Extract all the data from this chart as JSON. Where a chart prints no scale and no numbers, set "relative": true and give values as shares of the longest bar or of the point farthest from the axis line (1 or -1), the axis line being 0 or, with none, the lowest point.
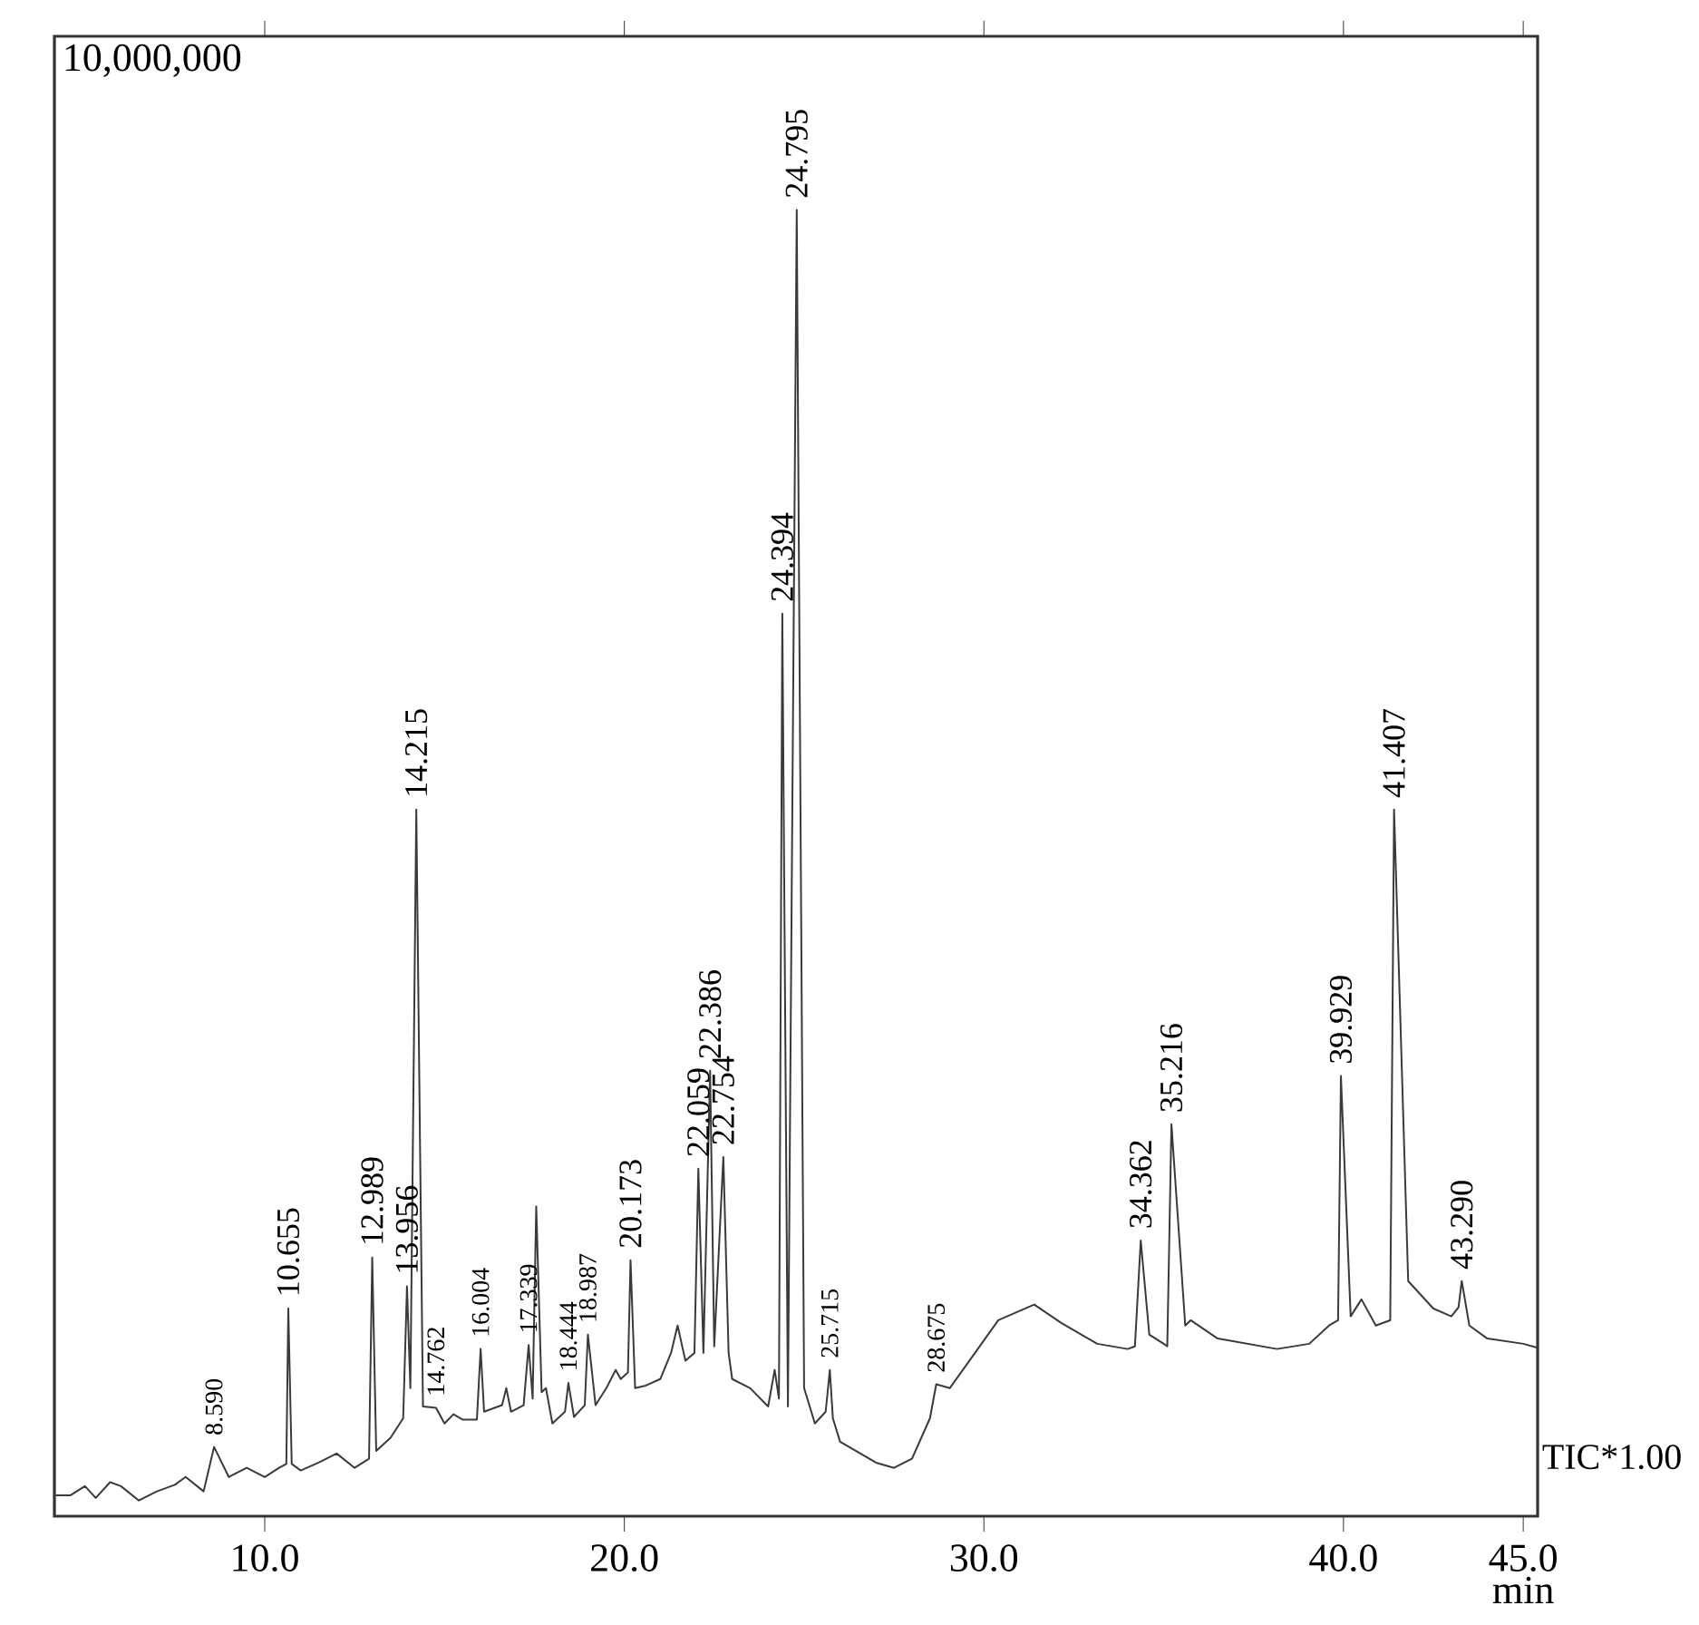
{
  "chart_data": {
    "type": "line",
    "relative": true,
    "xlabel": "min",
    "color": "#3a3a3a",
    "xlim": [
      4.15,
      45.4
    ],
    "xticks": [
      {
        "value": 10,
        "label": "10.0"
      },
      {
        "value": 20,
        "label": "20.0"
      },
      {
        "value": 30,
        "label": "30.0"
      },
      {
        "value": 40,
        "label": "40.0"
      },
      {
        "value": 45,
        "label": "45.0"
      }
    ],
    "x": [
      4.2,
      4.6,
      5.0,
      5.3,
      5.7,
      6.0,
      6.5,
      7.0,
      7.5,
      7.8,
      8.3,
      8.59,
      9.0,
      9.5,
      10.0,
      10.4,
      10.6,
      10.655,
      10.75,
      11.0,
      11.5,
      12.0,
      12.5,
      12.9,
      12.989,
      13.1,
      13.5,
      13.85,
      13.956,
      14.05,
      14.215,
      14.4,
      14.762,
      15.0,
      15.249,
      15.5,
      15.9,
      16.004,
      16.1,
      16.6,
      16.718,
      16.85,
      17.2,
      17.339,
      17.45,
      17.55,
      17.7,
      17.821,
      18.0,
      18.35,
      18.444,
      18.6,
      18.9,
      18.987,
      19.2,
      19.5,
      19.76,
      19.9,
      20.1,
      20.173,
      20.3,
      20.6,
      21.0,
      21.3,
      21.481,
      21.7,
      21.95,
      22.059,
      22.2,
      22.386,
      22.5,
      22.754,
      22.9,
      23.0,
      23.5,
      24.0,
      24.181,
      24.3,
      24.394,
      24.55,
      24.795,
      25.0,
      25.3,
      25.6,
      25.715,
      25.8,
      26.0,
      27.0,
      27.5,
      28.0,
      28.5,
      28.675,
      29.05,
      29.65,
      30.4,
      31.4,
      32.15,
      33.15,
      34.0,
      34.2,
      34.362,
      34.6,
      35.0,
      35.1,
      35.216,
      35.6,
      35.75,
      36.5,
      38.15,
      39.05,
      39.6,
      39.85,
      39.929,
      40.2,
      40.5,
      40.9,
      41.3,
      41.407,
      41.8,
      42.5,
      43.0,
      43.2,
      43.29,
      43.5,
      44.0,
      45.0,
      45.4
    ],
    "values": [
      0.016,
      0.016,
      0.023,
      0.014,
      0.026,
      0.023,
      0.012,
      0.019,
      0.024,
      0.03,
      0.019,
      0.053,
      0.03,
      0.037,
      0.03,
      0.037,
      0.04,
      0.159,
      0.04,
      0.035,
      0.041,
      0.048,
      0.037,
      0.044,
      0.198,
      0.05,
      0.06,
      0.075,
      0.176,
      0.098,
      0.541,
      0.084,
      0.083,
      0.071,
      0.078,
      0.074,
      0.074,
      0.128,
      0.08,
      0.085,
      0.098,
      0.08,
      0.085,
      0.131,
      0.09,
      0.237,
      0.095,
      0.098,
      0.071,
      0.08,
      0.102,
      0.076,
      0.085,
      0.139,
      0.085,
      0.098,
      0.112,
      0.105,
      0.11,
      0.196,
      0.098,
      0.1,
      0.105,
      0.125,
      0.146,
      0.119,
      0.125,
      0.266,
      0.125,
      0.341,
      0.13,
      0.275,
      0.125,
      0.105,
      0.098,
      0.084,
      0.112,
      0.09,
      0.691,
      0.084,
      1.0,
      0.098,
      0.071,
      0.08,
      0.112,
      0.075,
      0.057,
      0.041,
      0.037,
      0.044,
      0.075,
      0.101,
      0.098,
      0.121,
      0.15,
      0.162,
      0.148,
      0.132,
      0.128,
      0.13,
      0.211,
      0.139,
      0.132,
      0.13,
      0.3,
      0.146,
      0.15,
      0.136,
      0.128,
      0.132,
      0.146,
      0.15,
      0.337,
      0.153,
      0.166,
      0.146,
      0.15,
      0.541,
      0.18,
      0.159,
      0.153,
      0.16,
      0.18,
      0.146,
      0.136,
      0.132,
      0.129
    ],
    "annotations": [
      "10,000,000",
      "TIC*1.00",
      {
        "text": "8.590",
        "x": 8.59,
        "y": 0.053
      },
      {
        "text": "10.655",
        "x": 10.655,
        "y": 0.159
      },
      {
        "text": "12.989",
        "x": 12.989,
        "y": 0.198
      },
      {
        "text": "13.956",
        "x": 13.956,
        "y": 0.176
      },
      {
        "text": "14.215",
        "x": 14.215,
        "y": 0.541
      },
      {
        "text": "14.762",
        "x": 14.762,
        "y": 0.083
      },
      {
        "text": "16.004",
        "x": 16.004,
        "y": 0.128
      },
      {
        "text": "17.339",
        "x": 17.339,
        "y": 0.131
      },
      {
        "text": "18.444",
        "x": 18.444,
        "y": 0.102
      },
      {
        "text": "18.987",
        "x": 18.987,
        "y": 0.139
      },
      {
        "text": "20.173",
        "x": 20.173,
        "y": 0.196
      },
      {
        "text": "22.059",
        "x": 22.059,
        "y": 0.266
      },
      {
        "text": "22.386",
        "x": 22.386,
        "y": 0.341
      },
      {
        "text": "22.754",
        "x": 22.754,
        "y": 0.275
      },
      {
        "text": "24.394",
        "x": 24.394,
        "y": 0.691
      },
      {
        "text": "24.795",
        "x": 24.795,
        "y": 1.0
      },
      {
        "text": "25.715",
        "x": 25.715,
        "y": 0.112
      },
      {
        "text": "28.675",
        "x": 28.675,
        "y": 0.101
      },
      {
        "text": "34.362",
        "x": 34.362,
        "y": 0.211
      },
      {
        "text": "35.216",
        "x": 35.216,
        "y": 0.3
      },
      {
        "text": "39.929",
        "x": 39.929,
        "y": 0.337
      },
      {
        "text": "41.407",
        "x": 41.407,
        "y": 0.541
      },
      {
        "text": "43.290",
        "x": 43.29,
        "y": 0.18
      }
    ]
  }
}
